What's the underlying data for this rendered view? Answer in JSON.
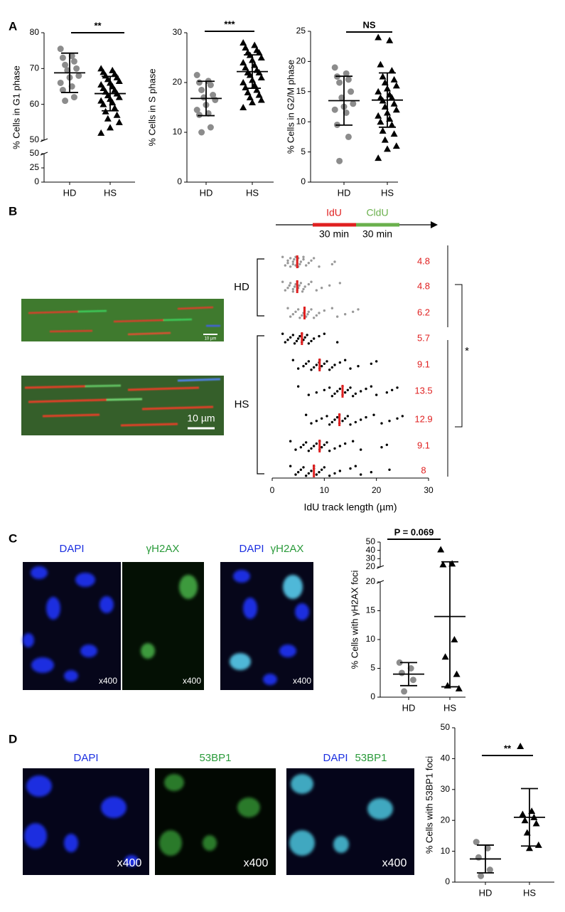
{
  "panels": [
    "A",
    "B",
    "C",
    "D"
  ],
  "schematic_B": {
    "labels": [
      "IdU",
      "CldU"
    ],
    "durations": [
      "30 min",
      "30 min"
    ]
  },
  "images_B": {
    "scale_bar": "10 µm"
  },
  "images_C": {
    "labels": [
      "DAPI",
      "γH2AX"
    ],
    "magnification": "x400"
  },
  "images_D": {
    "labels": [
      "DAPI",
      "53BP1"
    ],
    "magnification": "x400"
  },
  "chart_data": [
    {
      "type": "dotplot",
      "ylabel": "% Cells in G1 phase",
      "categories": [
        "HD",
        "HS"
      ],
      "annotation": "**",
      "ylim": [
        50,
        80
      ],
      "yticks": [
        50,
        60,
        70,
        80
      ],
      "ylim_lower": [
        0,
        50
      ],
      "yticks_lower": [
        0,
        25,
        50
      ],
      "colors": [
        "#8c8c8c",
        "#000000"
      ],
      "markers": [
        "circle",
        "triangle"
      ],
      "values": [
        [
          75.5,
          73.5,
          73,
          72,
          71,
          70,
          69.5,
          68,
          67.5,
          66,
          65,
          64,
          62,
          61
        ],
        [
          70,
          69.5,
          69,
          68.5,
          68,
          67.5,
          67,
          66.5,
          66,
          65.5,
          65,
          64.5,
          64,
          63.5,
          63,
          62.5,
          62,
          61.5,
          61,
          60.5,
          60,
          59,
          58,
          57,
          56,
          55,
          53.5,
          52
        ]
      ],
      "means": [
        68.8,
        63
      ],
      "sd": [
        5.5,
        4.8
      ]
    },
    {
      "type": "dotplot",
      "ylabel": "% Cells in S phase",
      "categories": [
        "HD",
        "HS"
      ],
      "annotation": "***",
      "ylim": [
        0,
        30
      ],
      "yticks": [
        0,
        10,
        20,
        30
      ],
      "colors": [
        "#8c8c8c",
        "#000000"
      ],
      "markers": [
        "circle",
        "triangle"
      ],
      "values": [
        [
          21.5,
          20.3,
          20,
          19.5,
          18.5,
          17.5,
          17,
          16.5,
          15.5,
          14.5,
          13.8,
          13.5,
          11,
          10
        ],
        [
          28,
          27.5,
          27,
          26.5,
          26,
          26,
          25.5,
          25,
          24.5,
          24,
          23.5,
          23,
          22.5,
          22,
          22,
          21.5,
          21,
          20.5,
          20,
          19.5,
          19,
          18.5,
          18,
          17.5,
          17,
          16.5,
          16,
          15
        ]
      ],
      "means": [
        16.8,
        22.2
      ],
      "sd": [
        3.45,
        3.35
      ]
    },
    {
      "type": "dotplot",
      "ylabel": "% Cells in G2/M phase",
      "categories": [
        "HD",
        "HS"
      ],
      "annotation": "NS",
      "ylim": [
        0,
        25
      ],
      "yticks": [
        0,
        5,
        10,
        15,
        20,
        25
      ],
      "colors": [
        "#8c8c8c",
        "#000000"
      ],
      "markers": [
        "circle",
        "triangle"
      ],
      "values": [
        [
          19,
          18,
          17.5,
          17,
          16.5,
          15,
          14,
          13,
          12.5,
          12,
          11.5,
          9.5,
          7.5,
          3.5
        ],
        [
          24,
          23.5,
          19.5,
          18.5,
          17.5,
          17,
          16.5,
          16,
          15.5,
          15,
          14.5,
          14,
          14,
          13.5,
          13,
          12.5,
          12,
          11.5,
          11,
          10.5,
          10,
          9.5,
          8.5,
          8,
          7,
          6,
          5.5,
          4
        ]
      ],
      "means": [
        13.5,
        13.6
      ],
      "sd": [
        4.05,
        4.5
      ]
    },
    {
      "type": "hdotplot",
      "xlabel": "IdU track length (µm)",
      "annotation": "*",
      "xlim": [
        0,
        30
      ],
      "xticks": [
        0,
        10,
        20,
        30
      ],
      "median_color": "#e02020",
      "groups": [
        {
          "label": "HD",
          "color": "#999999",
          "medians": [
            4.8,
            4.8,
            6.2
          ],
          "values": [
            [
              2,
              2.5,
              3,
              3,
              3.5,
              3.5,
              4,
              4,
              4.2,
              4.5,
              4.5,
              4.8,
              4.8,
              5,
              5,
              5.3,
              5.5,
              6,
              6,
              6.5,
              7,
              7.5,
              8,
              9,
              11.5,
              12
            ],
            [
              2,
              2.5,
              3,
              3.3,
              3.5,
              4,
              4,
              4.3,
              4.5,
              4.8,
              4.8,
              5,
              5.2,
              5.5,
              5.8,
              6,
              6.3,
              7,
              7.5,
              8.5,
              9.5,
              11,
              13
            ],
            [
              3,
              3.5,
              4,
              4.5,
              5,
              5.3,
              5.7,
              6,
              6.2,
              6.2,
              6.5,
              6.8,
              7,
              7.5,
              8,
              8.5,
              9,
              10,
              11.5,
              12.5,
              14,
              15.5,
              16.5
            ]
          ]
        },
        {
          "label": "HS",
          "color": "#000000",
          "medians": [
            5.7,
            9.1,
            13.5,
            12.9,
            9.1,
            8
          ],
          "values": [
            [
              2,
              2.5,
              3,
              3.5,
              4,
              4.3,
              4.7,
              5,
              5.3,
              5.7,
              5.7,
              6,
              6.3,
              6.7,
              7,
              7.5,
              8,
              9,
              10,
              12.5
            ],
            [
              4,
              5,
              6,
              6.5,
              7,
              7.5,
              8,
              8.5,
              9,
              9.1,
              9.1,
              9.5,
              10,
              10.5,
              11,
              11.5,
              12,
              13,
              14,
              15,
              16.5,
              19,
              20
            ],
            [
              5,
              7,
              8.5,
              10,
              11,
              11.5,
              12,
              12.5,
              13,
              13.5,
              13.5,
              14,
              14.5,
              15,
              15.5,
              16,
              17,
              18,
              19,
              20,
              22,
              23,
              24
            ],
            [
              6.5,
              7.5,
              8.5,
              9.5,
              10.5,
              11,
              11.5,
              12,
              12.5,
              12.9,
              12.9,
              13.5,
              14,
              14.5,
              15,
              16,
              17,
              18,
              19.5,
              21,
              22.5,
              24,
              25
            ],
            [
              3.5,
              4.5,
              5.5,
              6,
              6.5,
              7,
              7.5,
              8,
              8.5,
              9.1,
              9.1,
              9.5,
              10,
              10.5,
              11,
              12,
              13,
              14,
              15.5,
              17,
              21,
              22
            ],
            [
              3.5,
              4.5,
              5,
              5.5,
              6,
              6.5,
              7,
              7.5,
              8,
              8,
              8.5,
              9,
              9.5,
              10,
              11,
              12,
              13,
              15,
              16,
              17,
              19,
              22.5
            ]
          ]
        }
      ]
    },
    {
      "type": "dotplot",
      "ylabel": "% Cells with γH2AX foci",
      "categories": [
        "HD",
        "HS"
      ],
      "annotation": "P = 0.069",
      "ylim": [
        20,
        50
      ],
      "yticks": [
        20,
        30,
        40,
        50
      ],
      "ylim_lower": [
        0,
        20
      ],
      "yticks_lower": [
        0,
        5,
        10,
        15,
        20
      ],
      "colors": [
        "#8c8c8c",
        "#000000"
      ],
      "markers": [
        "circle",
        "triangle"
      ],
      "values": [
        [
          6,
          5,
          4.2,
          3,
          1
        ],
        [
          41,
          24,
          23,
          10,
          7,
          4,
          2,
          1.5
        ]
      ],
      "means": [
        4,
        14
      ],
      "sd": [
        2,
        12.2
      ]
    },
    {
      "type": "dotplot",
      "ylabel": "% Cells with 53BP1 foci",
      "categories": [
        "HD",
        "HS"
      ],
      "annotation": "**",
      "ylim": [
        0,
        50
      ],
      "yticks": [
        0,
        10,
        20,
        30,
        40,
        50
      ],
      "colors": [
        "#8c8c8c",
        "#000000"
      ],
      "markers": [
        "circle",
        "triangle"
      ],
      "values": [
        [
          13,
          11,
          8,
          4,
          2
        ],
        [
          44,
          23,
          22,
          21,
          20,
          19,
          16,
          12,
          11
        ]
      ],
      "means": [
        7.5,
        21
      ],
      "sd": [
        4.5,
        9.3
      ]
    }
  ]
}
